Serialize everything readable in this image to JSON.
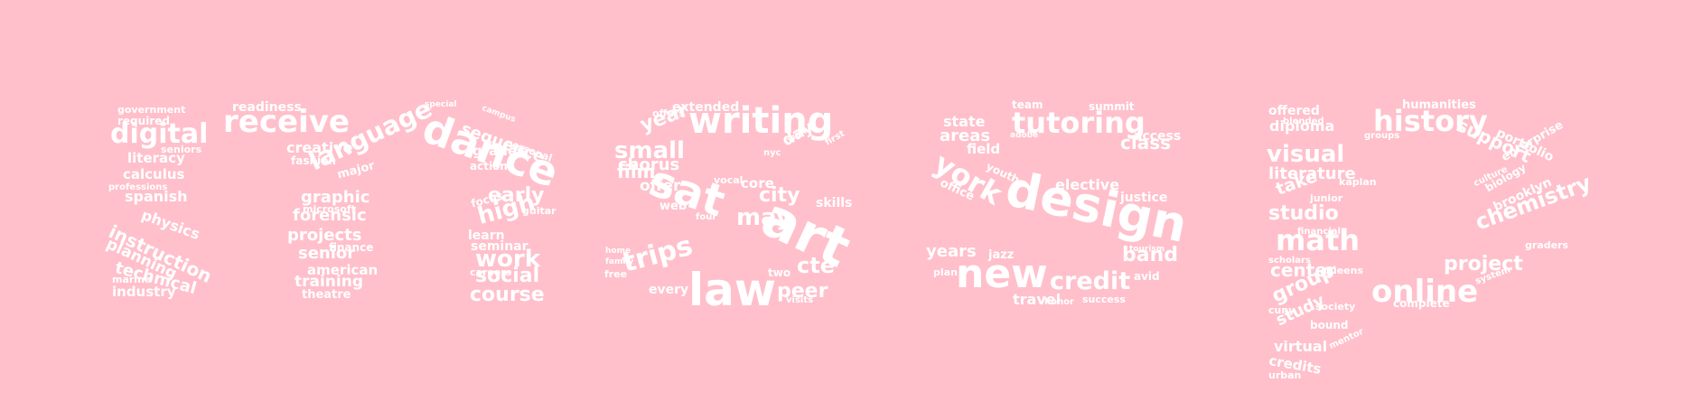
{
  "background": "#ffc0cb",
  "word_color": "#ffffff",
  "shape_letters": [
    "m",
    "s",
    "s",
    "p"
  ],
  "words": [
    "government",
    "required",
    "readiness",
    "digital",
    "receive",
    "literacy",
    "calculus",
    "seniors",
    "language",
    "dance",
    "creative",
    "fashion",
    "major",
    "professions",
    "spanish",
    "graphic",
    "microsoft",
    "physics",
    "forensic",
    "instruction",
    "early",
    "high",
    "planning",
    "projects",
    "finance",
    "senior",
    "technical",
    "american",
    "training",
    "theatre",
    "marine",
    "industry",
    "grades",
    "learn",
    "seminar",
    "work",
    "social",
    "course",
    "guitar",
    "sequence",
    "personal",
    "action",
    "special",
    "campus",
    "focus",
    "careers",
    "extended",
    "offers",
    "writing",
    "year",
    "small",
    "chorus",
    "film",
    "sat",
    "offer",
    "day",
    "vocal",
    "art",
    "may",
    "city",
    "core",
    "skills",
    "web",
    "trips",
    "law",
    "every",
    "peer",
    "cte",
    "free",
    "visits",
    "two",
    "nyc",
    "four",
    "wall",
    "first",
    "home",
    "family",
    "tutoring",
    "team",
    "summit",
    "state",
    "areas",
    "field",
    "class",
    "access",
    "york",
    "youth",
    "office",
    "design",
    "elective",
    "justice",
    "years",
    "jazz",
    "new",
    "credit",
    "band",
    "avid",
    "travel",
    "success",
    "tourism",
    "honor",
    "plan",
    "adobe",
    "offered",
    "diploma",
    "humanities",
    "history",
    "visual",
    "support",
    "portfolio",
    "literature",
    "enterprise",
    "take",
    "studio",
    "kaplan",
    "junior",
    "math",
    "chemistry",
    "biology",
    "brooklyn",
    "center",
    "project",
    "graders",
    "online",
    "group",
    "queens",
    "study",
    "bound",
    "virtual",
    "credits",
    "urban",
    "cuny",
    "society",
    "complete",
    "system",
    "scholars",
    "financial",
    "culture",
    "blended",
    "groups",
    "mentor"
  ]
}
